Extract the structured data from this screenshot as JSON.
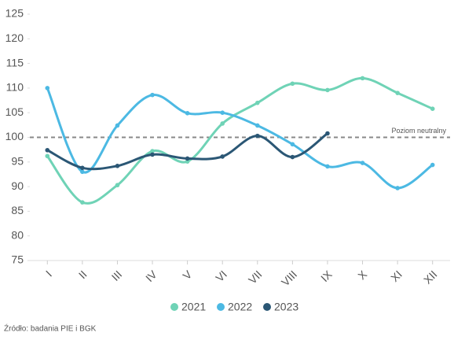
{
  "chart_data": {
    "type": "line",
    "categories": [
      "I",
      "II",
      "III",
      "IV",
      "V",
      "VI",
      "VII",
      "VIII",
      "IX",
      "X",
      "XI",
      "XII"
    ],
    "series": [
      {
        "name": "2021",
        "color": "#6fd3b6",
        "values": [
          96.2,
          86.8,
          90.3,
          97.2,
          95.1,
          102.8,
          107,
          110.9,
          109.6,
          112,
          109,
          105.8
        ]
      },
      {
        "name": "2022",
        "color": "#4cb9e3",
        "values": [
          110,
          93,
          102.4,
          108.6,
          104.9,
          105,
          102.4,
          98.6,
          94.1,
          94.8,
          89.7,
          94.4
        ]
      },
      {
        "name": "2023",
        "color": "#2b5775",
        "values": [
          97.4,
          93.8,
          94.2,
          96.5,
          95.7,
          96.1,
          100.3,
          96,
          100.8,
          null,
          null,
          null
        ]
      }
    ],
    "ylim": [
      75,
      125
    ],
    "yticks": [
      75,
      80,
      85,
      90,
      95,
      100,
      105,
      110,
      115,
      120,
      125
    ],
    "reference_line": {
      "value": 100,
      "label": "Poziom neutralny"
    },
    "source": "Źródło: badania PIE i BGK"
  }
}
